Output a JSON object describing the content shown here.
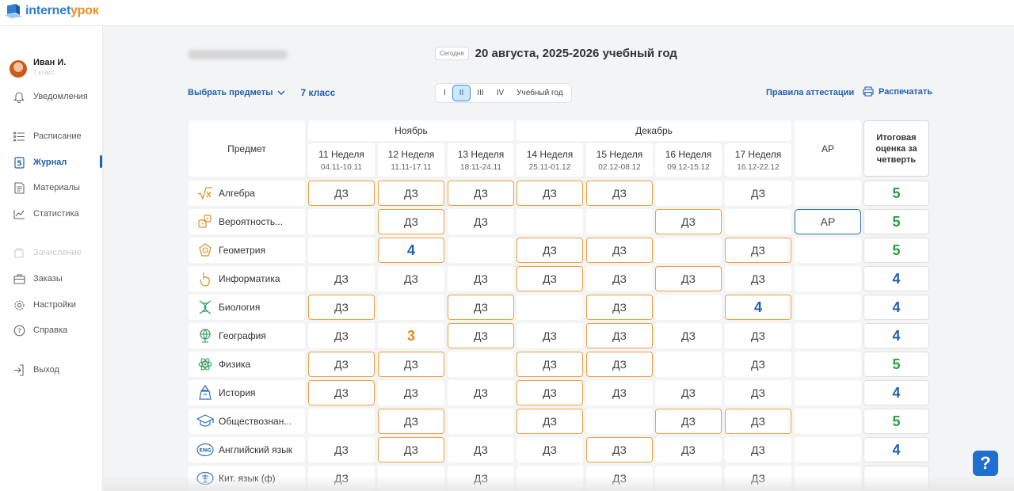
{
  "brand": {
    "name_part1": "internet",
    "name_part2": "урок",
    "color": "#2f7fd3",
    "accent": "#f08b1d"
  },
  "user": {
    "name": "Иван И.",
    "grade": "7 класс"
  },
  "sidebar": {
    "items": [
      {
        "label": "Уведомления",
        "icon": "bell-icon",
        "state": "normal"
      },
      {
        "label": "Расписание",
        "icon": "list-icon",
        "state": "normal"
      },
      {
        "label": "Журнал",
        "icon": "journal-icon",
        "state": "active"
      },
      {
        "label": "Материалы",
        "icon": "document-icon",
        "state": "normal"
      },
      {
        "label": "Статистика",
        "icon": "chart-icon",
        "state": "normal"
      },
      {
        "label": "Зачисление",
        "icon": "enroll-icon",
        "state": "disabled"
      },
      {
        "label": "Заказы",
        "icon": "bag-icon",
        "state": "normal"
      },
      {
        "label": "Настройки",
        "icon": "gear-icon",
        "state": "normal"
      },
      {
        "label": "Справка",
        "icon": "help-icon",
        "state": "normal"
      },
      {
        "label": "Выход",
        "icon": "logout-icon",
        "state": "normal"
      }
    ]
  },
  "header": {
    "today_chip": "Сегодня",
    "date_text": "20 августа, 2025-2026 учебный год",
    "select_subjects": "Выбрать предметы",
    "class_label": "7 класс",
    "quarters": [
      "I",
      "II",
      "III",
      "IV",
      "Учебный год"
    ],
    "active_quarter": 1,
    "rules_link": "Правила аттестации",
    "print_label": "Распечатать"
  },
  "table": {
    "subject_header": "Предмет",
    "months": [
      "Ноябрь",
      "Декабрь"
    ],
    "weeks": [
      {
        "name": "11 Неделя",
        "dates": "04.11-10.11"
      },
      {
        "name": "12 Неделя",
        "dates": "11.11-17.11"
      },
      {
        "name": "13 Неделя",
        "dates": "18.11-24.11"
      },
      {
        "name": "14 Неделя",
        "dates": "25.11-01.12"
      },
      {
        "name": "15 Неделя",
        "dates": "02.12-08.12"
      },
      {
        "name": "16 Неделя",
        "dates": "09.12-15.12"
      },
      {
        "name": "17 Неделя",
        "dates": "16.12-22.12"
      }
    ],
    "ar_header": "АР",
    "final_header": "Итоговая оценка за четверть",
    "rows": [
      {
        "subject": "Алгебра",
        "icon": "sqrt-icon",
        "cells": [
          {
            "v": "ДЗ",
            "h": 1
          },
          {
            "v": "ДЗ",
            "h": 1
          },
          {
            "v": "ДЗ",
            "h": 1
          },
          {
            "v": "ДЗ",
            "h": 1
          },
          {
            "v": "ДЗ",
            "h": 1
          },
          {
            "v": "",
            "h": 0
          },
          {
            "v": "ДЗ",
            "h": 0
          }
        ],
        "ar": "",
        "final": "5"
      },
      {
        "subject": "Вероятность...",
        "icon": "dice-icon",
        "cells": [
          {
            "v": "",
            "h": 0
          },
          {
            "v": "ДЗ",
            "h": 1
          },
          {
            "v": "ДЗ",
            "h": 0
          },
          {
            "v": "",
            "h": 0
          },
          {
            "v": "",
            "h": 0
          },
          {
            "v": "ДЗ",
            "h": 1
          },
          {
            "v": "",
            "h": 0
          }
        ],
        "ar": "АР",
        "final": "5"
      },
      {
        "subject": "Геометрия",
        "icon": "shape-icon",
        "cells": [
          {
            "v": "",
            "h": 0
          },
          {
            "v": "4",
            "h": 1
          },
          {
            "v": "",
            "h": 0
          },
          {
            "v": "ДЗ",
            "h": 1
          },
          {
            "v": "ДЗ",
            "h": 1
          },
          {
            "v": "",
            "h": 0
          },
          {
            "v": "ДЗ",
            "h": 1
          }
        ],
        "ar": "",
        "final": "5"
      },
      {
        "subject": "Информатика",
        "icon": "cursor-hand-icon",
        "cells": [
          {
            "v": "ДЗ",
            "h": 0
          },
          {
            "v": "ДЗ",
            "h": 0
          },
          {
            "v": "ДЗ",
            "h": 0
          },
          {
            "v": "ДЗ",
            "h": 1
          },
          {
            "v": "ДЗ",
            "h": 0
          },
          {
            "v": "ДЗ",
            "h": 1
          },
          {
            "v": "ДЗ",
            "h": 0
          }
        ],
        "ar": "",
        "final": "4"
      },
      {
        "subject": "Биология",
        "icon": "dna-icon",
        "cells": [
          {
            "v": "ДЗ",
            "h": 1
          },
          {
            "v": "",
            "h": 0
          },
          {
            "v": "ДЗ",
            "h": 1
          },
          {
            "v": "",
            "h": 0
          },
          {
            "v": "ДЗ",
            "h": 1
          },
          {
            "v": "",
            "h": 0
          },
          {
            "v": "4",
            "h": 1
          }
        ],
        "ar": "",
        "final": "4"
      },
      {
        "subject": "География",
        "icon": "globe-icon",
        "cells": [
          {
            "v": "ДЗ",
            "h": 0
          },
          {
            "v": "3",
            "h": 0
          },
          {
            "v": "ДЗ",
            "h": 1
          },
          {
            "v": "ДЗ",
            "h": 0
          },
          {
            "v": "ДЗ",
            "h": 1
          },
          {
            "v": "ДЗ",
            "h": 0
          },
          {
            "v": "ДЗ",
            "h": 0
          }
        ],
        "ar": "",
        "final": "4"
      },
      {
        "subject": "Физика",
        "icon": "atom-icon",
        "cells": [
          {
            "v": "ДЗ",
            "h": 1
          },
          {
            "v": "ДЗ",
            "h": 1
          },
          {
            "v": "",
            "h": 0
          },
          {
            "v": "ДЗ",
            "h": 1
          },
          {
            "v": "ДЗ",
            "h": 1
          },
          {
            "v": "",
            "h": 0
          },
          {
            "v": "ДЗ",
            "h": 0
          }
        ],
        "ar": "",
        "final": "5"
      },
      {
        "subject": "История",
        "icon": "history-icon",
        "cells": [
          {
            "v": "ДЗ",
            "h": 1
          },
          {
            "v": "ДЗ",
            "h": 0
          },
          {
            "v": "ДЗ",
            "h": 0
          },
          {
            "v": "ДЗ",
            "h": 1
          },
          {
            "v": "ДЗ",
            "h": 0
          },
          {
            "v": "ДЗ",
            "h": 0
          },
          {
            "v": "ДЗ",
            "h": 0
          }
        ],
        "ar": "",
        "final": "4"
      },
      {
        "subject": "Обществознан...",
        "icon": "graduation-cap-icon",
        "cells": [
          {
            "v": "",
            "h": 0
          },
          {
            "v": "ДЗ",
            "h": 1
          },
          {
            "v": "",
            "h": 0
          },
          {
            "v": "ДЗ",
            "h": 1
          },
          {
            "v": "",
            "h": 0
          },
          {
            "v": "ДЗ",
            "h": 1
          },
          {
            "v": "ДЗ",
            "h": 1
          }
        ],
        "ar": "",
        "final": "5"
      },
      {
        "subject": "Английский язык",
        "icon": "eng-icon",
        "cells": [
          {
            "v": "ДЗ",
            "h": 0
          },
          {
            "v": "ДЗ",
            "h": 1
          },
          {
            "v": "ДЗ",
            "h": 0
          },
          {
            "v": "ДЗ",
            "h": 0
          },
          {
            "v": "ДЗ",
            "h": 1
          },
          {
            "v": "ДЗ",
            "h": 0
          },
          {
            "v": "ДЗ",
            "h": 0
          }
        ],
        "ar": "",
        "final": "4"
      },
      {
        "subject": "Кит. язык (ф)",
        "icon": "chinese-icon",
        "cells": [
          {
            "v": "ДЗ",
            "h": 0
          },
          {
            "v": "",
            "h": 0
          },
          {
            "v": "ДЗ",
            "h": 0
          },
          {
            "v": "",
            "h": 0
          },
          {
            "v": "ДЗ",
            "h": 0
          },
          {
            "v": "",
            "h": 0
          },
          {
            "v": "ДЗ",
            "h": 0
          }
        ],
        "ar": "",
        "final": ""
      }
    ]
  },
  "help_button": "?",
  "colors": {
    "accent_blue": "#1e5fb0",
    "highlight_orange": "#f0a040",
    "grade5_green": "#2a9d3f",
    "grade3_orange": "#e58a1a"
  }
}
